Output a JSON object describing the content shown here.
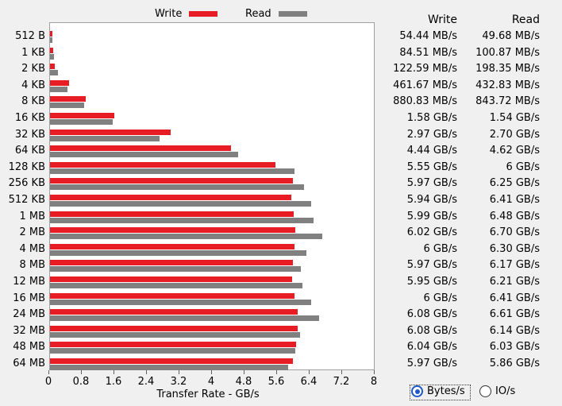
{
  "legend": {
    "write_label": "Write",
    "read_label": "Read",
    "write_color": "#e81c24",
    "read_color": "#808080"
  },
  "table": {
    "write_header": "Write",
    "read_header": "Read"
  },
  "x_axis": {
    "title": "Transfer Rate - GB/s",
    "ticks": [
      "0",
      "0.8",
      "1.6",
      "2.4",
      "3.2",
      "4",
      "4.8",
      "5.6",
      "6.4",
      "7.2",
      "8"
    ]
  },
  "options": {
    "bytes_label": "Bytes/s",
    "io_label": "IO/s",
    "selected": "bytes"
  },
  "chart_data": {
    "type": "bar",
    "orientation": "horizontal",
    "xlabel": "Transfer Rate - GB/s",
    "xlim": [
      0,
      8
    ],
    "categories": [
      "512 B",
      "1 KB",
      "2 KB",
      "4 KB",
      "8 KB",
      "16 KB",
      "32 KB",
      "64 KB",
      "128 KB",
      "256 KB",
      "512 KB",
      "1 MB",
      "2 MB",
      "4 MB",
      "8 MB",
      "12 MB",
      "16 MB",
      "24 MB",
      "32 MB",
      "48 MB",
      "64 MB"
    ],
    "series": [
      {
        "name": "Write",
        "values": [
          0.05444,
          0.08451,
          0.12259,
          0.46167,
          0.88083,
          1.58,
          2.97,
          4.44,
          5.55,
          5.97,
          5.94,
          5.99,
          6.02,
          6.0,
          5.97,
          5.95,
          6.0,
          6.08,
          6.08,
          6.04,
          5.97
        ],
        "labels": [
          "54.44 MB/s",
          "84.51 MB/s",
          "122.59 MB/s",
          "461.67 MB/s",
          "880.83 MB/s",
          "1.58 GB/s",
          "2.97 GB/s",
          "4.44 GB/s",
          "5.55 GB/s",
          "5.97 GB/s",
          "5.94 GB/s",
          "5.99 GB/s",
          "6.02 GB/s",
          "6 GB/s",
          "5.97 GB/s",
          "5.95 GB/s",
          "6 GB/s",
          "6.08 GB/s",
          "6.08 GB/s",
          "6.04 GB/s",
          "5.97 GB/s"
        ]
      },
      {
        "name": "Read",
        "values": [
          0.04968,
          0.10087,
          0.19835,
          0.43283,
          0.84372,
          1.54,
          2.7,
          4.62,
          6.0,
          6.25,
          6.41,
          6.48,
          6.7,
          6.3,
          6.17,
          6.21,
          6.41,
          6.61,
          6.14,
          6.03,
          5.86
        ],
        "labels": [
          "49.68 MB/s",
          "100.87 MB/s",
          "198.35 MB/s",
          "432.83 MB/s",
          "843.72 MB/s",
          "1.54 GB/s",
          "2.70 GB/s",
          "4.62 GB/s",
          "6 GB/s",
          "6.25 GB/s",
          "6.41 GB/s",
          "6.48 GB/s",
          "6.70 GB/s",
          "6.30 GB/s",
          "6.17 GB/s",
          "6.21 GB/s",
          "6.41 GB/s",
          "6.61 GB/s",
          "6.14 GB/s",
          "6.03 GB/s",
          "5.86 GB/s"
        ]
      }
    ]
  }
}
